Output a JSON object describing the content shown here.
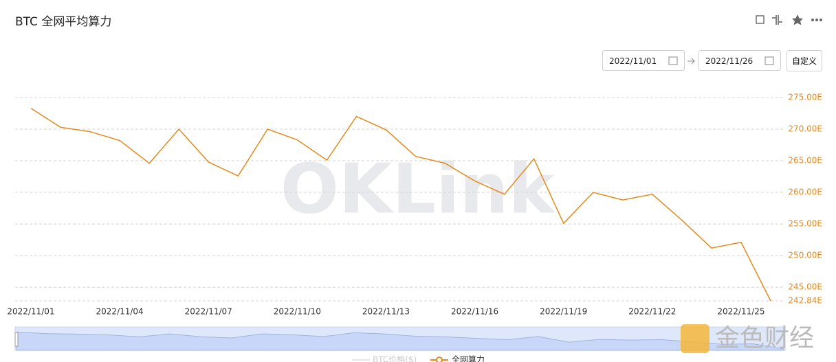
{
  "header": {
    "title": "BTC 全网平均算力"
  },
  "controls": {
    "start_date": "2022/11/01",
    "end_date": "2022/11/26",
    "custom": "自定义"
  },
  "watermark": "OKLink",
  "brand": "金色财经",
  "chart_data": {
    "type": "line",
    "categories": [
      "2022/11/01",
      null,
      null,
      "2022/11/04",
      null,
      null,
      "2022/11/07",
      null,
      null,
      "2022/11/10",
      null,
      null,
      "2022/11/13",
      null,
      null,
      "2022/11/16",
      null,
      null,
      "2022/11/19",
      null,
      null,
      "2022/11/22",
      null,
      null,
      "2022/11/25",
      null
    ],
    "series": [
      {
        "name": "全网算力",
        "color": "#e48a1c",
        "values": [
          273.3,
          270.3,
          269.6,
          268.2,
          264.6,
          270.0,
          264.8,
          262.6,
          270.0,
          268.3,
          265.1,
          272.0,
          269.9,
          265.7,
          264.6,
          261.8,
          259.7,
          265.3,
          255.1,
          260.0,
          258.8,
          259.7,
          255.6,
          251.2,
          252.1,
          242.84
        ]
      }
    ],
    "hidden_legend": "BTC价格($)",
    "ylim": [
      242.84,
      275
    ],
    "yticks": [
      {
        "value": 242.84,
        "label": "242.84E"
      },
      {
        "value": 245,
        "label": "245.00E"
      },
      {
        "value": 250,
        "label": "250.00E"
      },
      {
        "value": 255,
        "label": "255.00E"
      },
      {
        "value": 260,
        "label": "260.00E"
      },
      {
        "value": 265,
        "label": "265.00E"
      },
      {
        "value": 270,
        "label": "270.00E"
      },
      {
        "value": 275,
        "label": "275.00E"
      }
    ],
    "grid": true
  }
}
